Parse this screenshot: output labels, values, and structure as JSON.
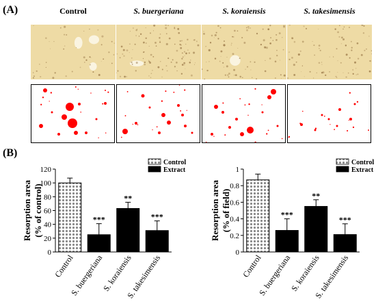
{
  "panels": {
    "a_label": "(A)",
    "b_label": "(B)"
  },
  "columns": [
    {
      "title": "Control",
      "italic": false
    },
    {
      "title": "S. buergeriana",
      "italic": true
    },
    {
      "title": "S. koraiensis",
      "italic": true
    },
    {
      "title": "S. takesimensis",
      "italic": true
    }
  ],
  "colors": {
    "photo_bg": "#eedba5",
    "pit_brown": "#9a7848",
    "pit_white": "#fbf6e8",
    "mask_red": "#ff0000",
    "bar_extract": "#000000",
    "bar_control_pattern": "#8a8a8a"
  },
  "chart_data": [
    {
      "type": "bar",
      "ylabel": "Resorption area\n(% of control)",
      "ylim": [
        0,
        120
      ],
      "yticks": [
        "0",
        "20",
        "40",
        "60",
        "80",
        "100",
        "120"
      ],
      "categories": [
        "Control",
        "S. buergeriana",
        "S. koraiensis",
        "S. takesimensis"
      ],
      "values": [
        100,
        25,
        63,
        31
      ],
      "errors": [
        7,
        16,
        9,
        14
      ],
      "significance": [
        "",
        "***",
        "**",
        "***"
      ],
      "legend": [
        "Control",
        "Extract"
      ],
      "legend_position": "top-right"
    },
    {
      "type": "bar",
      "ylabel": "Resorption area\n(% of field)",
      "ylim": [
        0,
        1
      ],
      "yticks": [
        "0",
        "0.2",
        "0.4",
        "0.6",
        "0.8",
        "1"
      ],
      "categories": [
        "Control",
        "S. buergeriana",
        "S. koraiensis",
        "S. takesimensis"
      ],
      "values": [
        0.87,
        0.26,
        0.55,
        0.21
      ],
      "errors": [
        0.07,
        0.14,
        0.08,
        0.13
      ],
      "significance": [
        "",
        "***",
        "**",
        "***"
      ],
      "legend": [
        "Control",
        "Extract"
      ],
      "legend_position": "top-right"
    }
  ]
}
